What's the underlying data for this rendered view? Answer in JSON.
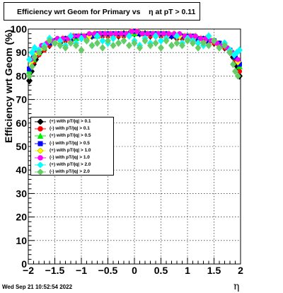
{
  "title": "Efficiency wrt Geom for Primary vs    η at pT > 0.11",
  "timestamp": "Wed Sep 21 10:52:54 2022",
  "chart_data": {
    "type": "scatter",
    "xlabel": "η",
    "ylabel": "Efficiency wrt Geom (%)",
    "xlim": [
      -2,
      2
    ],
    "ylim": [
      0,
      100
    ],
    "x_ticks": [
      "−2",
      "−1.5",
      "−1",
      "−0.5",
      "0",
      "0.5",
      "1",
      "1.5",
      "2"
    ],
    "y_ticks": [
      "0",
      "10",
      "20",
      "30",
      "40",
      "50",
      "60",
      "70",
      "80",
      "90",
      "100"
    ],
    "grid": true,
    "legend_position": "middle-left",
    "series": [
      {
        "name": "(+) with pT/|q| > 0.1",
        "color": "#000000",
        "marker": "diamond",
        "x": [
          -1.98,
          -1.94,
          -1.9,
          -1.86,
          -1.82,
          -1.78,
          -1.7,
          -1.6,
          -1.5,
          -1.4,
          -1.3,
          -1.2,
          -1.1,
          -1.0,
          -0.9,
          -0.8,
          -0.7,
          -0.6,
          -0.5,
          -0.4,
          -0.3,
          -0.2,
          -0.1,
          0.0,
          0.1,
          0.2,
          0.3,
          0.4,
          0.5,
          0.6,
          0.7,
          0.8,
          0.9,
          1.0,
          1.1,
          1.2,
          1.3,
          1.4,
          1.5,
          1.6,
          1.7,
          1.8,
          1.86,
          1.9,
          1.94,
          1.98
        ],
        "y": [
          78,
          82,
          85,
          87,
          89,
          90,
          92,
          93,
          94,
          94,
          95,
          95,
          96,
          96,
          96,
          97,
          97,
          97,
          97,
          97,
          97,
          98,
          98,
          98,
          98,
          98,
          97,
          97,
          97,
          97,
          97,
          96,
          96,
          96,
          96,
          95,
          95,
          94,
          94,
          93,
          92,
          90,
          88,
          86,
          84,
          80
        ]
      },
      {
        "name": "(-) with pT/|q| > 0.1",
        "color": "#ff0000",
        "marker": "circle",
        "x": [
          -1.98,
          -1.9,
          -1.8,
          -1.7,
          -1.6,
          -1.5,
          -1.4,
          -1.3,
          -1.2,
          -1.1,
          -1.0,
          -0.9,
          -0.8,
          -0.7,
          -0.6,
          -0.5,
          -0.4,
          -0.3,
          -0.2,
          -0.1,
          0.0,
          0.1,
          0.2,
          0.3,
          0.4,
          0.5,
          0.6,
          0.7,
          0.8,
          0.9,
          1.0,
          1.1,
          1.2,
          1.3,
          1.4,
          1.5,
          1.6,
          1.7,
          1.8,
          1.9,
          1.98
        ],
        "y": [
          80,
          86,
          89,
          91,
          93,
          94,
          94,
          95,
          95,
          96,
          96,
          96,
          97,
          97,
          97,
          97,
          97,
          97,
          97,
          98,
          98,
          98,
          98,
          97,
          97,
          97,
          97,
          97,
          96,
          96,
          96,
          95,
          95,
          95,
          94,
          94,
          93,
          92,
          90,
          87,
          82
        ]
      },
      {
        "name": "(+) with pT/|q| > 0.5",
        "color": "#00ee00",
        "marker": "triangle",
        "x": [
          -1.98,
          -1.9,
          -1.8,
          -1.7,
          -1.6,
          -1.5,
          -1.4,
          -1.3,
          -1.2,
          -1.1,
          -1.0,
          -0.9,
          -0.8,
          -0.7,
          -0.6,
          -0.5,
          -0.4,
          -0.3,
          -0.2,
          -0.1,
          0.0,
          0.1,
          0.2,
          0.3,
          0.4,
          0.5,
          0.6,
          0.7,
          0.8,
          0.9,
          1.0,
          1.1,
          1.2,
          1.3,
          1.4,
          1.5,
          1.6,
          1.7,
          1.8,
          1.9,
          1.98
        ],
        "y": [
          82,
          87,
          90,
          92,
          94,
          95,
          95,
          96,
          96,
          96,
          97,
          97,
          97,
          97,
          98,
          98,
          98,
          98,
          98,
          98,
          98,
          98,
          98,
          98,
          98,
          98,
          98,
          97,
          97,
          97,
          97,
          96,
          96,
          96,
          95,
          95,
          94,
          93,
          91,
          88,
          84
        ]
      },
      {
        "name": "(-) with pT/|q| > 0.5",
        "color": "#0000ff",
        "marker": "square",
        "x": [
          -1.98,
          -1.9,
          -1.8,
          -1.7,
          -1.6,
          -1.5,
          -1.4,
          -1.3,
          -1.2,
          -1.1,
          -1.0,
          -0.9,
          -0.8,
          -0.7,
          -0.6,
          -0.5,
          -0.4,
          -0.3,
          -0.2,
          -0.1,
          0.0,
          0.1,
          0.2,
          0.3,
          0.4,
          0.5,
          0.6,
          0.7,
          0.8,
          0.9,
          1.0,
          1.1,
          1.2,
          1.3,
          1.4,
          1.5,
          1.6,
          1.7,
          1.8,
          1.9,
          1.98
        ],
        "y": [
          83,
          88,
          91,
          93,
          94,
          95,
          95,
          96,
          96,
          97,
          97,
          97,
          97,
          98,
          98,
          98,
          98,
          98,
          98,
          98,
          99,
          98,
          98,
          98,
          98,
          98,
          98,
          97,
          97,
          97,
          97,
          97,
          96,
          96,
          95,
          95,
          94,
          93,
          91,
          88,
          85
        ]
      },
      {
        "name": "(+) with pT/|q| > 1.0",
        "color": "#ffff00",
        "marker": "diamond",
        "x": [
          -1.95,
          -1.85,
          -1.75,
          -1.65,
          -1.55,
          -1.45,
          -1.35,
          -1.25,
          -1.15,
          -1.05,
          -0.95,
          -0.85,
          -0.75,
          -0.65,
          -0.55,
          -0.45,
          -0.35,
          -0.25,
          -0.15,
          -0.05,
          0.05,
          0.15,
          0.25,
          0.35,
          0.45,
          0.55,
          0.65,
          0.75,
          0.85,
          0.95,
          1.05,
          1.15,
          1.25,
          1.35,
          1.45,
          1.55,
          1.65,
          1.75,
          1.85,
          1.95
        ],
        "y": [
          86,
          90,
          92,
          94,
          95,
          95,
          96,
          96,
          97,
          97,
          97,
          97,
          98,
          98,
          98,
          98,
          98,
          98,
          98,
          99,
          99,
          98,
          98,
          98,
          98,
          98,
          98,
          98,
          97,
          97,
          97,
          97,
          96,
          96,
          95,
          94,
          93,
          92,
          90,
          86
        ]
      },
      {
        "name": "(-) with pT/|q| > 1.0",
        "color": "#ff00ff",
        "marker": "circle",
        "x": [
          -1.95,
          -1.85,
          -1.75,
          -1.65,
          -1.55,
          -1.45,
          -1.35,
          -1.25,
          -1.15,
          -1.05,
          -0.95,
          -0.85,
          -0.75,
          -0.65,
          -0.55,
          -0.45,
          -0.35,
          -0.25,
          -0.15,
          -0.05,
          0.05,
          0.15,
          0.25,
          0.35,
          0.45,
          0.55,
          0.65,
          0.75,
          0.85,
          0.95,
          1.05,
          1.15,
          1.25,
          1.35,
          1.45,
          1.55,
          1.65,
          1.75,
          1.85,
          1.95
        ],
        "y": [
          87,
          91,
          93,
          94,
          95,
          96,
          96,
          96,
          97,
          97,
          97,
          98,
          98,
          98,
          98,
          98,
          98,
          98,
          98,
          99,
          99,
          98,
          98,
          98,
          98,
          98,
          98,
          98,
          98,
          97,
          97,
          97,
          96,
          96,
          95,
          94,
          93,
          92,
          90,
          87
        ]
      },
      {
        "name": "(+) with pT/|q| > 2.0",
        "color": "#00ffff",
        "marker": "diamond",
        "x": [
          -1.98,
          -1.93,
          -1.88,
          -1.8,
          -1.7,
          -1.6,
          -1.5,
          -1.4,
          -1.3,
          -1.2,
          -1.1,
          -1.0,
          -0.9,
          -0.8,
          -0.7,
          -0.6,
          -0.5,
          -0.4,
          -0.3,
          -0.2,
          -0.1,
          0.0,
          0.1,
          0.2,
          0.3,
          0.4,
          0.5,
          0.6,
          0.7,
          0.8,
          0.9,
          1.0,
          1.1,
          1.2,
          1.3,
          1.4,
          1.5,
          1.6,
          1.7,
          1.8,
          1.88,
          1.93,
          1.98
        ],
        "y": [
          87,
          90,
          92,
          91,
          93,
          96,
          94,
          95,
          93,
          97,
          94,
          96,
          95,
          93,
          97,
          95,
          94,
          96,
          94,
          95,
          97,
          95,
          93,
          96,
          94,
          97,
          95,
          96,
          93,
          97,
          94,
          96,
          95,
          94,
          93,
          97,
          95,
          92,
          94,
          91,
          89,
          90,
          91
        ]
      },
      {
        "name": "(-) with pT/|q| > 2.0",
        "color": "#66cc66",
        "marker": "diamond",
        "x": [
          -1.98,
          -1.93,
          -1.88,
          -1.8,
          -1.7,
          -1.6,
          -1.5,
          -1.4,
          -1.3,
          -1.2,
          -1.1,
          -1.0,
          -0.9,
          -0.8,
          -0.7,
          -0.6,
          -0.5,
          -0.4,
          -0.3,
          -0.2,
          -0.1,
          0.0,
          0.1,
          0.2,
          0.3,
          0.4,
          0.5,
          0.6,
          0.7,
          0.8,
          0.9,
          1.0,
          1.1,
          1.2,
          1.3,
          1.4,
          1.5,
          1.6,
          1.7,
          1.8,
          1.86,
          1.9,
          1.95
        ],
        "y": [
          80,
          84,
          88,
          90,
          92,
          95,
          94,
          93,
          92,
          94,
          93,
          91,
          95,
          93,
          94,
          92,
          95,
          93,
          94,
          95,
          93,
          94,
          92,
          95,
          93,
          94,
          92,
          95,
          93,
          94,
          93,
          95,
          94,
          92,
          94,
          93,
          95,
          92,
          93,
          90,
          85,
          82,
          80
        ]
      }
    ]
  }
}
